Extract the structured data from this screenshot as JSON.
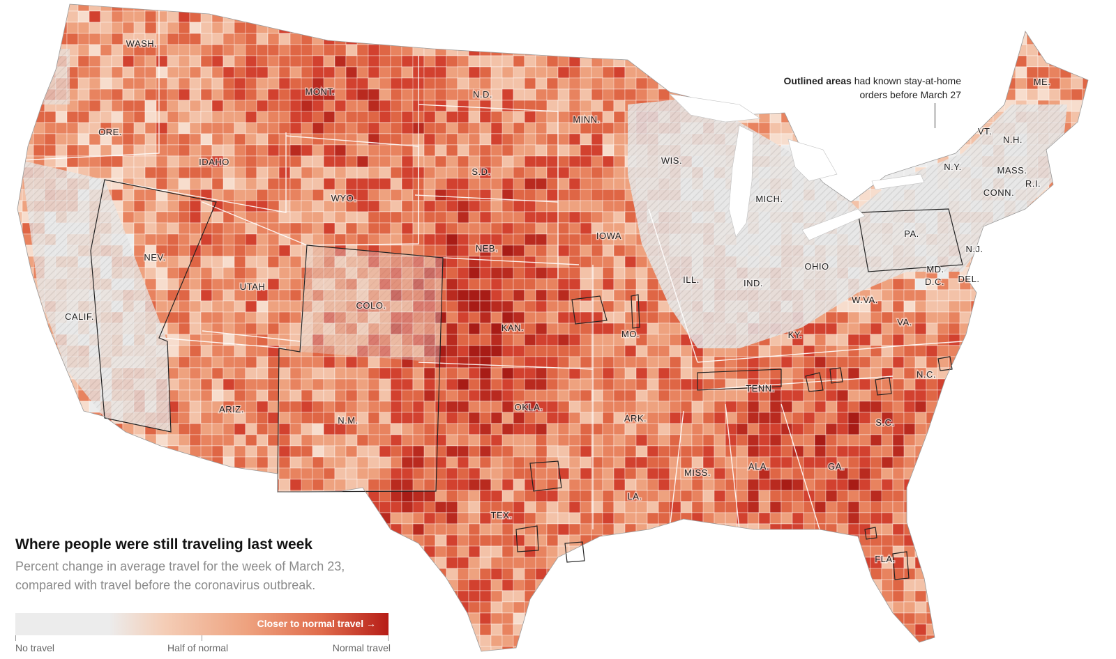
{
  "legend": {
    "title": "Where people were still traveling last week",
    "subtitle": "Percent change in average travel for the week of March 23, compared with travel before the coronavirus outbreak.",
    "bar_label": "Closer to normal travel",
    "arrow": "→",
    "ticks": [
      "No travel",
      "Half of normal",
      "Normal travel"
    ]
  },
  "annotation": {
    "bold": "Outlined areas",
    "line1": "had known stay-at-home",
    "line2": "orders before March 27"
  },
  "states": [
    {
      "id": "wa",
      "label": "WASH."
    },
    {
      "id": "or",
      "label": "ORE."
    },
    {
      "id": "ca",
      "label": "CALIF."
    },
    {
      "id": "id",
      "label": "IDAHO"
    },
    {
      "id": "nv",
      "label": "NEV."
    },
    {
      "id": "mt",
      "label": "MONT."
    },
    {
      "id": "wy",
      "label": "WYO."
    },
    {
      "id": "ut",
      "label": "UTAH"
    },
    {
      "id": "az",
      "label": "ARIZ."
    },
    {
      "id": "co",
      "label": "COLO."
    },
    {
      "id": "nm",
      "label": "N.M."
    },
    {
      "id": "nd",
      "label": "N.D."
    },
    {
      "id": "sd",
      "label": "S.D."
    },
    {
      "id": "ne",
      "label": "NEB."
    },
    {
      "id": "ks",
      "label": "KAN."
    },
    {
      "id": "ok",
      "label": "OKLA."
    },
    {
      "id": "tx",
      "label": "TEX."
    },
    {
      "id": "mn",
      "label": "MINN."
    },
    {
      "id": "ia",
      "label": "IOWA"
    },
    {
      "id": "mo",
      "label": "MO."
    },
    {
      "id": "ar",
      "label": "ARK."
    },
    {
      "id": "la",
      "label": "LA."
    },
    {
      "id": "wi",
      "label": "WIS."
    },
    {
      "id": "il",
      "label": "ILL."
    },
    {
      "id": "mi",
      "label": "MICH."
    },
    {
      "id": "in",
      "label": "IND."
    },
    {
      "id": "oh",
      "label": "OHIO"
    },
    {
      "id": "ky",
      "label": "KY."
    },
    {
      "id": "tn",
      "label": "TENN."
    },
    {
      "id": "ms",
      "label": "MISS."
    },
    {
      "id": "al",
      "label": "ALA."
    },
    {
      "id": "ga",
      "label": "GA."
    },
    {
      "id": "fl",
      "label": "FLA."
    },
    {
      "id": "sc",
      "label": "S.C."
    },
    {
      "id": "nc",
      "label": "N.C."
    },
    {
      "id": "va",
      "label": "VA."
    },
    {
      "id": "wv",
      "label": "W.VA."
    },
    {
      "id": "pa",
      "label": "PA."
    },
    {
      "id": "ny",
      "label": "N.Y."
    },
    {
      "id": "vt",
      "label": "VT."
    },
    {
      "id": "nh",
      "label": "N.H."
    },
    {
      "id": "me",
      "label": "ME."
    },
    {
      "id": "ma",
      "label": "MASS."
    },
    {
      "id": "ri",
      "label": "R.I."
    },
    {
      "id": "ct",
      "label": "CONN."
    },
    {
      "id": "nj",
      "label": "N.J."
    },
    {
      "id": "de",
      "label": "DEL."
    },
    {
      "id": "md",
      "label": "MD."
    },
    {
      "id": "dc",
      "label": "D.C."
    }
  ],
  "colors": {
    "no_travel": "#ececec",
    "half": "#f3c2a8",
    "mid": "#e8835f",
    "high": "#d2412f",
    "normal": "#a81c16",
    "outline": "#222222"
  }
}
